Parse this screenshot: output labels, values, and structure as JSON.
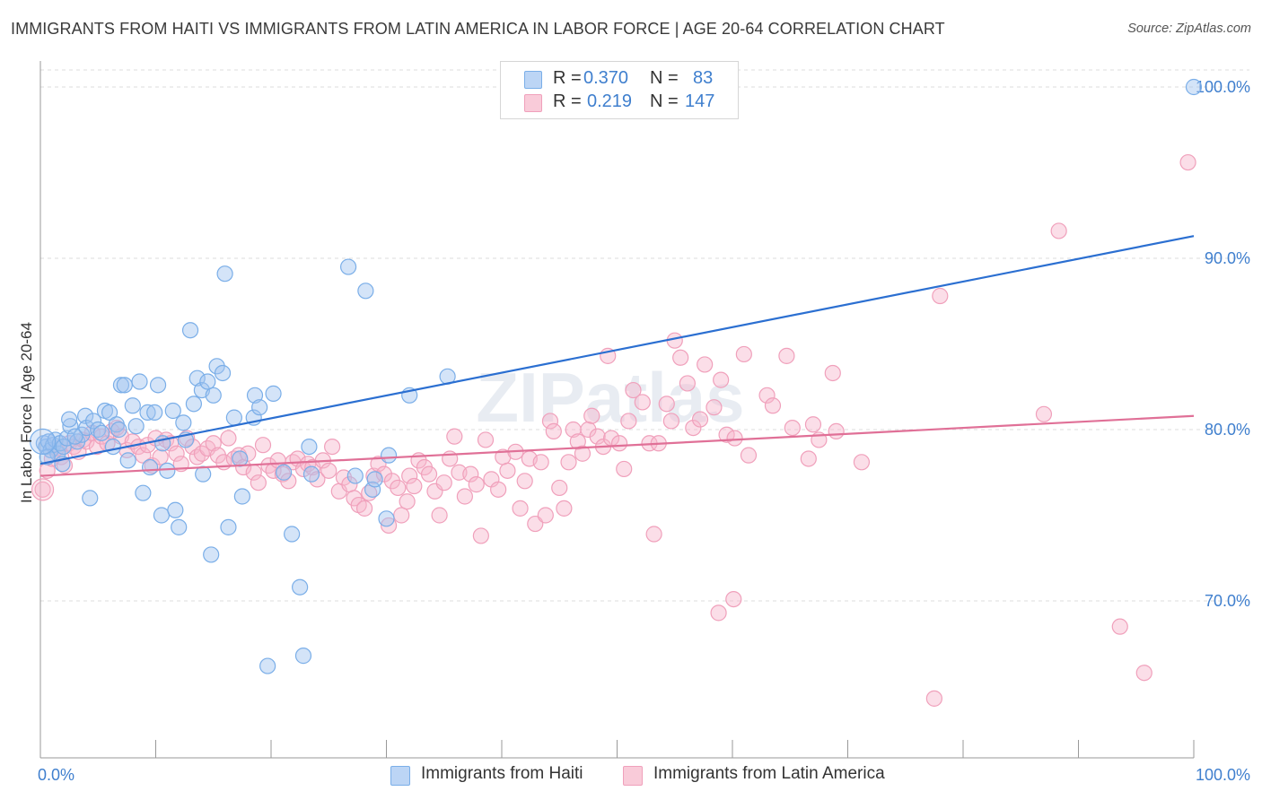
{
  "title": "IMMIGRANTS FROM HAITI VS IMMIGRANTS FROM LATIN AMERICA IN LABOR FORCE | AGE 20-64 CORRELATION CHART",
  "source": "Source: ZipAtlas.com",
  "watermark": "ZIPatlas",
  "legend": {
    "rows": [
      {
        "r_label": "R =",
        "r_value": "0.370",
        "n_label": "N =",
        "n_value": "83",
        "color": "#7aaee8",
        "fill": "#bcd5f5"
      },
      {
        "r_label": "R =",
        "r_value": "0.219",
        "n_label": "N =",
        "n_value": "147",
        "color": "#f0a0bb",
        "fill": "#f9cbd9"
      }
    ]
  },
  "bottom_legend": [
    {
      "label": "Immigrants from Haiti",
      "color": "#7aaee8",
      "fill": "#bcd5f5"
    },
    {
      "label": "Immigrants from Latin America",
      "color": "#f0a0bb",
      "fill": "#f9cbd9"
    }
  ],
  "chart_data": {
    "type": "scatter",
    "title": "IMMIGRANTS FROM HAITI VS IMMIGRANTS FROM LATIN AMERICA IN LABOR FORCE | AGE 20-64 CORRELATION CHART",
    "xlabel": "",
    "ylabel": "In Labor Force | Age 20-64",
    "xlim": [
      0,
      100
    ],
    "ylim": [
      61.5,
      101.5
    ],
    "x_tick_labels": [
      "0.0%",
      "100.0%"
    ],
    "y_ticks": [
      70,
      80,
      90,
      100
    ],
    "y_tick_labels": [
      "70.0%",
      "80.0%",
      "90.0%",
      "100.0%"
    ],
    "grid": "horizontal dashed",
    "legend_placement": "top-center",
    "series": [
      {
        "name": "Immigrants from Haiti",
        "color": "#7aaee8",
        "line_color": "#2b6fd1",
        "trend": {
          "x": [
            0,
            100
          ],
          "y": [
            78.0,
            91.3
          ]
        },
        "points": [
          [
            0.3,
            79.2
          ],
          [
            0.5,
            79.0
          ],
          [
            0.7,
            79.3
          ],
          [
            0.9,
            78.8
          ],
          [
            1.1,
            79.1
          ],
          [
            1.3,
            79.4
          ],
          [
            1.5,
            78.6
          ],
          [
            1.7,
            79.2
          ],
          [
            2.0,
            79.0
          ],
          [
            2.3,
            79.5
          ],
          [
            2.6,
            80.2
          ],
          [
            2.5,
            80.6
          ],
          [
            3.2,
            79.3
          ],
          [
            3.6,
            79.7
          ],
          [
            3.9,
            80.8
          ],
          [
            4.0,
            80.1
          ],
          [
            4.3,
            76.0
          ],
          [
            4.6,
            80.5
          ],
          [
            5.0,
            80.0
          ],
          [
            5.3,
            79.8
          ],
          [
            5.6,
            81.1
          ],
          [
            6.0,
            81.0
          ],
          [
            6.3,
            79.0
          ],
          [
            6.6,
            80.3
          ],
          [
            7.0,
            82.6
          ],
          [
            7.3,
            82.6
          ],
          [
            7.6,
            78.2
          ],
          [
            8.0,
            81.4
          ],
          [
            8.3,
            80.2
          ],
          [
            8.6,
            82.8
          ],
          [
            8.9,
            76.3
          ],
          [
            9.3,
            81.0
          ],
          [
            9.5,
            77.8
          ],
          [
            9.9,
            81.0
          ],
          [
            10.2,
            82.6
          ],
          [
            10.5,
            75.0
          ],
          [
            10.6,
            79.2
          ],
          [
            11.0,
            77.6
          ],
          [
            11.5,
            81.1
          ],
          [
            11.7,
            75.3
          ],
          [
            12.0,
            74.3
          ],
          [
            12.6,
            79.4
          ],
          [
            12.4,
            80.4
          ],
          [
            13.0,
            85.8
          ],
          [
            13.3,
            81.5
          ],
          [
            13.6,
            83.0
          ],
          [
            14.0,
            82.3
          ],
          [
            14.1,
            77.4
          ],
          [
            14.5,
            82.8
          ],
          [
            14.8,
            72.7
          ],
          [
            15.0,
            82.0
          ],
          [
            15.3,
            83.7
          ],
          [
            15.8,
            83.3
          ],
          [
            16.0,
            89.1
          ],
          [
            16.3,
            74.3
          ],
          [
            16.8,
            80.7
          ],
          [
            17.3,
            78.3
          ],
          [
            17.5,
            76.1
          ],
          [
            18.5,
            80.7
          ],
          [
            18.6,
            82.0
          ],
          [
            19.0,
            81.3
          ],
          [
            19.7,
            66.2
          ],
          [
            20.2,
            82.1
          ],
          [
            21.1,
            77.5
          ],
          [
            21.8,
            73.9
          ],
          [
            22.5,
            70.8
          ],
          [
            22.8,
            66.8
          ],
          [
            23.3,
            79.0
          ],
          [
            23.5,
            77.4
          ],
          [
            26.7,
            89.5
          ],
          [
            27.3,
            77.3
          ],
          [
            28.2,
            88.1
          ],
          [
            28.8,
            76.5
          ],
          [
            29.0,
            77.1
          ],
          [
            30.0,
            74.8
          ],
          [
            30.2,
            78.5
          ],
          [
            32.0,
            82.0
          ],
          [
            35.3,
            83.1
          ],
          [
            0.6,
            78.4
          ],
          [
            1.9,
            78.0
          ],
          [
            3.0,
            79.6
          ],
          [
            6.8,
            80.0
          ],
          [
            100.0,
            100.0
          ]
        ]
      },
      {
        "name": "Immigrants from Latin America",
        "color": "#f0a0bb",
        "line_color": "#e07097",
        "trend": {
          "x": [
            0,
            100
          ],
          "y": [
            77.3,
            80.8
          ]
        },
        "points": [
          [
            0.2,
            76.5
          ],
          [
            0.6,
            77.6
          ],
          [
            1.0,
            78.3
          ],
          [
            1.4,
            78.9
          ],
          [
            1.8,
            78.4
          ],
          [
            2.1,
            77.9
          ],
          [
            2.5,
            79.2
          ],
          [
            2.9,
            79.0
          ],
          [
            3.3,
            78.7
          ],
          [
            3.7,
            79.4
          ],
          [
            4.0,
            79.3
          ],
          [
            4.5,
            79.8
          ],
          [
            4.9,
            79.0
          ],
          [
            5.3,
            79.6
          ],
          [
            5.8,
            79.2
          ],
          [
            6.2,
            79.9
          ],
          [
            6.6,
            80.1
          ],
          [
            7.0,
            79.6
          ],
          [
            7.5,
            78.8
          ],
          [
            8.0,
            79.3
          ],
          [
            8.5,
            79.0
          ],
          [
            8.9,
            78.5
          ],
          [
            9.3,
            79.1
          ],
          [
            9.7,
            77.9
          ],
          [
            10.0,
            79.5
          ],
          [
            10.4,
            78.4
          ],
          [
            10.9,
            79.4
          ],
          [
            11.3,
            79.2
          ],
          [
            11.8,
            78.6
          ],
          [
            12.2,
            78.0
          ],
          [
            12.7,
            79.5
          ],
          [
            13.2,
            79.0
          ],
          [
            13.6,
            78.4
          ],
          [
            14.0,
            78.6
          ],
          [
            14.5,
            78.9
          ],
          [
            15.0,
            79.2
          ],
          [
            15.4,
            78.5
          ],
          [
            15.9,
            78.1
          ],
          [
            16.3,
            79.5
          ],
          [
            16.8,
            78.3
          ],
          [
            17.2,
            78.5
          ],
          [
            17.6,
            77.8
          ],
          [
            18.0,
            78.6
          ],
          [
            18.5,
            77.5
          ],
          [
            18.9,
            76.9
          ],
          [
            19.3,
            79.1
          ],
          [
            19.8,
            77.9
          ],
          [
            20.2,
            77.6
          ],
          [
            20.6,
            78.2
          ],
          [
            21.0,
            77.4
          ],
          [
            21.5,
            77.0
          ],
          [
            21.9,
            78.1
          ],
          [
            22.3,
            78.3
          ],
          [
            22.8,
            77.7
          ],
          [
            23.2,
            78.0
          ],
          [
            23.6,
            77.8
          ],
          [
            24.0,
            77.1
          ],
          [
            24.5,
            78.2
          ],
          [
            25.0,
            77.6
          ],
          [
            25.3,
            79.0
          ],
          [
            25.9,
            76.4
          ],
          [
            26.3,
            77.2
          ],
          [
            26.8,
            76.8
          ],
          [
            27.2,
            76.0
          ],
          [
            27.6,
            75.6
          ],
          [
            28.1,
            75.4
          ],
          [
            28.5,
            76.3
          ],
          [
            28.9,
            77.3
          ],
          [
            29.3,
            78.0
          ],
          [
            29.8,
            77.4
          ],
          [
            30.2,
            74.4
          ],
          [
            30.5,
            77.0
          ],
          [
            31.0,
            76.6
          ],
          [
            31.3,
            75.0
          ],
          [
            31.8,
            75.8
          ],
          [
            32.0,
            77.3
          ],
          [
            32.4,
            76.7
          ],
          [
            32.8,
            78.2
          ],
          [
            33.3,
            77.8
          ],
          [
            33.7,
            77.4
          ],
          [
            34.2,
            76.4
          ],
          [
            34.6,
            75.0
          ],
          [
            35.0,
            76.9
          ],
          [
            35.5,
            78.3
          ],
          [
            35.9,
            79.6
          ],
          [
            36.3,
            77.5
          ],
          [
            36.8,
            76.1
          ],
          [
            37.3,
            77.4
          ],
          [
            37.8,
            76.8
          ],
          [
            38.2,
            73.8
          ],
          [
            38.6,
            79.4
          ],
          [
            39.1,
            77.1
          ],
          [
            39.7,
            76.5
          ],
          [
            40.1,
            78.4
          ],
          [
            40.5,
            77.6
          ],
          [
            41.2,
            78.7
          ],
          [
            41.6,
            75.4
          ],
          [
            42.0,
            77.0
          ],
          [
            42.4,
            78.3
          ],
          [
            42.9,
            74.5
          ],
          [
            43.4,
            78.1
          ],
          [
            43.8,
            75.0
          ],
          [
            44.2,
            80.5
          ],
          [
            44.5,
            79.9
          ],
          [
            45.0,
            76.6
          ],
          [
            45.4,
            75.4
          ],
          [
            45.8,
            78.1
          ],
          [
            46.2,
            80.0
          ],
          [
            46.6,
            79.3
          ],
          [
            47.0,
            78.6
          ],
          [
            47.5,
            80.0
          ],
          [
            47.8,
            80.8
          ],
          [
            48.3,
            79.6
          ],
          [
            48.8,
            79.0
          ],
          [
            49.2,
            84.3
          ],
          [
            49.5,
            79.5
          ],
          [
            50.2,
            79.2
          ],
          [
            50.6,
            77.7
          ],
          [
            51.0,
            80.5
          ],
          [
            51.4,
            82.3
          ],
          [
            52.2,
            81.6
          ],
          [
            52.8,
            79.2
          ],
          [
            53.2,
            73.9
          ],
          [
            53.6,
            79.2
          ],
          [
            54.3,
            81.5
          ],
          [
            54.7,
            80.5
          ],
          [
            55.0,
            85.2
          ],
          [
            55.5,
            84.2
          ],
          [
            56.1,
            82.7
          ],
          [
            56.6,
            80.1
          ],
          [
            57.2,
            80.6
          ],
          [
            57.6,
            83.8
          ],
          [
            58.4,
            81.3
          ],
          [
            59.0,
            82.9
          ],
          [
            59.5,
            79.7
          ],
          [
            60.2,
            79.5
          ],
          [
            61.0,
            84.4
          ],
          [
            61.4,
            78.5
          ],
          [
            63.0,
            82.0
          ],
          [
            63.5,
            81.4
          ],
          [
            64.7,
            84.3
          ],
          [
            65.2,
            80.1
          ],
          [
            66.6,
            78.3
          ],
          [
            67.0,
            80.3
          ],
          [
            67.5,
            79.4
          ],
          [
            68.7,
            83.3
          ],
          [
            69.0,
            79.9
          ],
          [
            71.2,
            78.1
          ],
          [
            78.0,
            87.8
          ],
          [
            88.3,
            91.6
          ],
          [
            87.0,
            80.9
          ],
          [
            99.5,
            95.6
          ],
          [
            95.7,
            65.8
          ],
          [
            77.5,
            64.3
          ],
          [
            60.1,
            70.1
          ],
          [
            58.8,
            69.3
          ],
          [
            93.6,
            68.5
          ]
        ]
      }
    ]
  }
}
